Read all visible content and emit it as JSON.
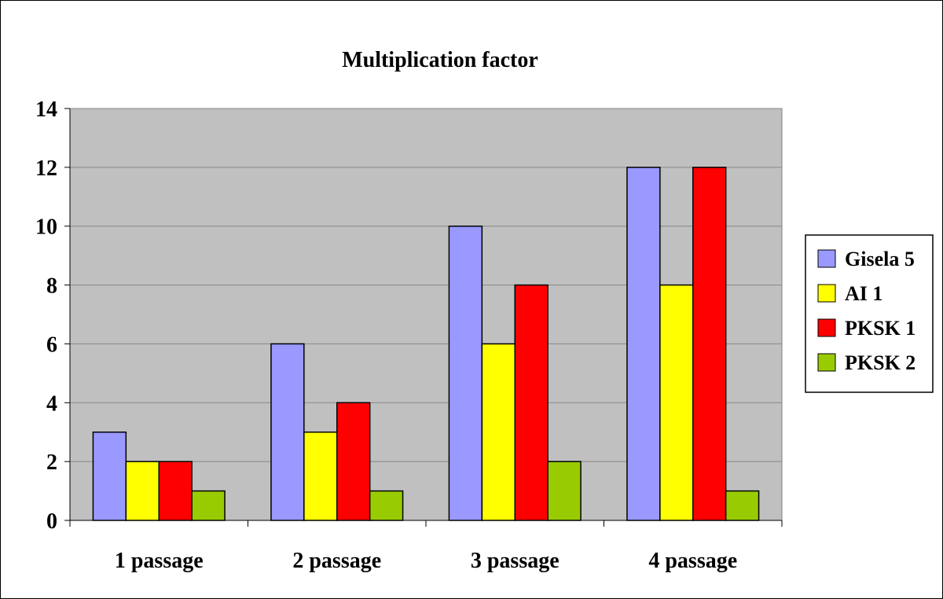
{
  "chart_data": {
    "type": "bar",
    "title": "Multiplication factor",
    "categories": [
      "1 passage",
      "2 passage",
      "3 passage",
      "4 passage"
    ],
    "series": [
      {
        "name": "Gisela 5",
        "values": [
          3,
          6,
          10,
          12
        ],
        "color": "#9999ff"
      },
      {
        "name": "AI 1",
        "values": [
          2,
          3,
          6,
          8
        ],
        "color": "#ffff00"
      },
      {
        "name": "PKSK 1",
        "values": [
          2,
          4,
          8,
          12
        ],
        "color": "#ff0000"
      },
      {
        "name": "PKSK 2",
        "values": [
          1,
          1,
          2,
          1
        ],
        "color": "#99cc00"
      }
    ],
    "ylim": [
      0,
      14
    ],
    "yticks": [
      0,
      2,
      4,
      6,
      8,
      10,
      12,
      14
    ],
    "grid": true,
    "plot_background": "#c0c0c0",
    "legend_position": "right"
  }
}
